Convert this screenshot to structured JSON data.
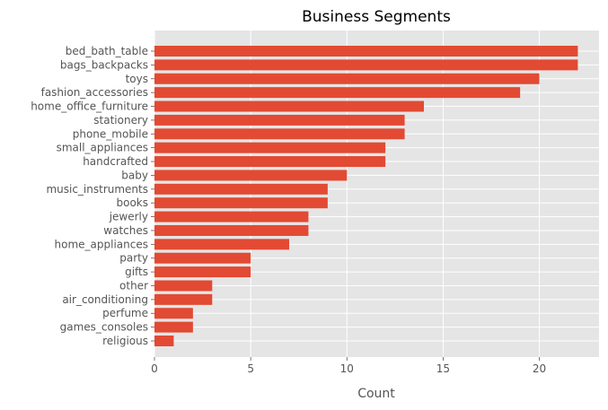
{
  "chart_data": {
    "type": "bar",
    "orientation": "horizontal",
    "title": "Business Segments",
    "xlabel": "Count",
    "ylabel": "",
    "xlim": [
      0,
      23.1
    ],
    "xticks": [
      0,
      5,
      10,
      15,
      20
    ],
    "grid": true,
    "legend": "none",
    "categories": [
      "bed_bath_table",
      "bags_backpacks",
      "toys",
      "fashion_accessories",
      "home_office_furniture",
      "stationery",
      "phone_mobile",
      "small_appliances",
      "handcrafted",
      "baby",
      "music_instruments",
      "books",
      "jewerly",
      "watches",
      "home_appliances",
      "party",
      "gifts",
      "other",
      "air_conditioning",
      "perfume",
      "games_consoles",
      "religious"
    ],
    "values": [
      22,
      22,
      20,
      19,
      14,
      13,
      13,
      12,
      12,
      10,
      9,
      9,
      8,
      8,
      7,
      5,
      5,
      3,
      3,
      2,
      2,
      1
    ]
  },
  "colors": {
    "bar": "#e24a33",
    "plot_background": "#e5e5e5",
    "grid": "#ffffff",
    "tick_text": "#555555",
    "title_text": "#000000"
  }
}
